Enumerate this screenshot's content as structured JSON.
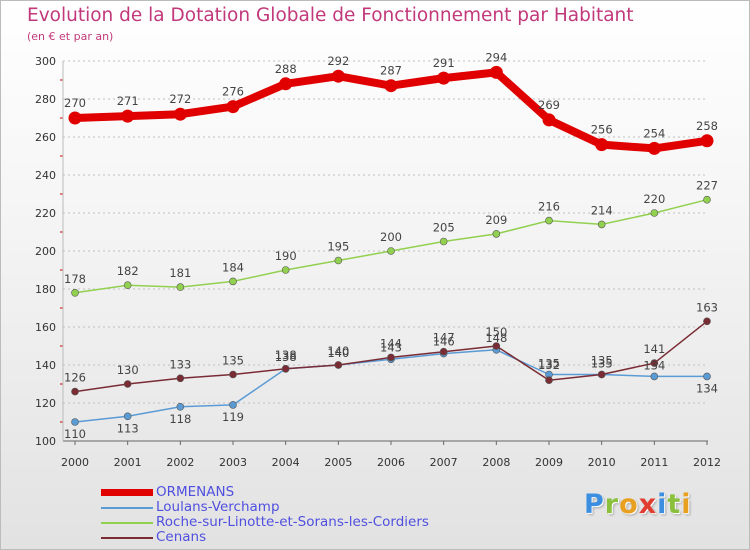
{
  "header": {
    "title": "Evolution de la Dotation Globale de Fonctionnement par Habitant",
    "subtitle": "(en € et par an)"
  },
  "logo": {
    "text": "Proxiti",
    "colors": [
      "#3c8ee0",
      "#8ac03c",
      "#e8a020",
      "#e03c30",
      "#3c8ee0",
      "#8ac03c",
      "#e8a020"
    ]
  },
  "colors": {
    "title": "#c2397b",
    "axis": "#333333",
    "grid": "#bfbfbf",
    "legend_text": "#5050e0"
  },
  "chart_data": {
    "type": "line",
    "title": "Evolution de la Dotation Globale de Fonctionnement par Habitant",
    "subtitle": "(en € et par an)",
    "x": [
      2000,
      2001,
      2002,
      2003,
      2004,
      2005,
      2006,
      2007,
      2008,
      2009,
      2010,
      2011,
      2012
    ],
    "ylim": [
      100,
      300
    ],
    "yticks": [
      100,
      120,
      140,
      160,
      180,
      200,
      220,
      240,
      260,
      280,
      300
    ],
    "grid": true,
    "legend_position": "bottom-left",
    "series": [
      {
        "name": "ORMENANS",
        "color": "#e00000",
        "width": 8,
        "values": [
          270,
          271,
          272,
          276,
          288,
          292,
          287,
          291,
          294,
          269,
          256,
          254,
          258
        ]
      },
      {
        "name": "Loulans-Verchamp",
        "color": "#5b9bd5",
        "width": 1.5,
        "values": [
          110,
          113,
          118,
          119,
          138,
          140,
          143,
          146,
          148,
          135,
          135,
          134,
          134
        ]
      },
      {
        "name": "Roche-sur-Linotte-et-Sorans-les-Cordiers",
        "color": "#92d050",
        "width": 1.5,
        "values": [
          178,
          182,
          181,
          184,
          190,
          195,
          200,
          205,
          209,
          216,
          214,
          220,
          227
        ]
      },
      {
        "name": "Cenans",
        "color": "#7a2c34",
        "width": 1.5,
        "values": [
          126,
          130,
          133,
          135,
          138,
          140,
          144,
          147,
          150,
          132,
          135,
          141,
          163
        ]
      }
    ]
  }
}
